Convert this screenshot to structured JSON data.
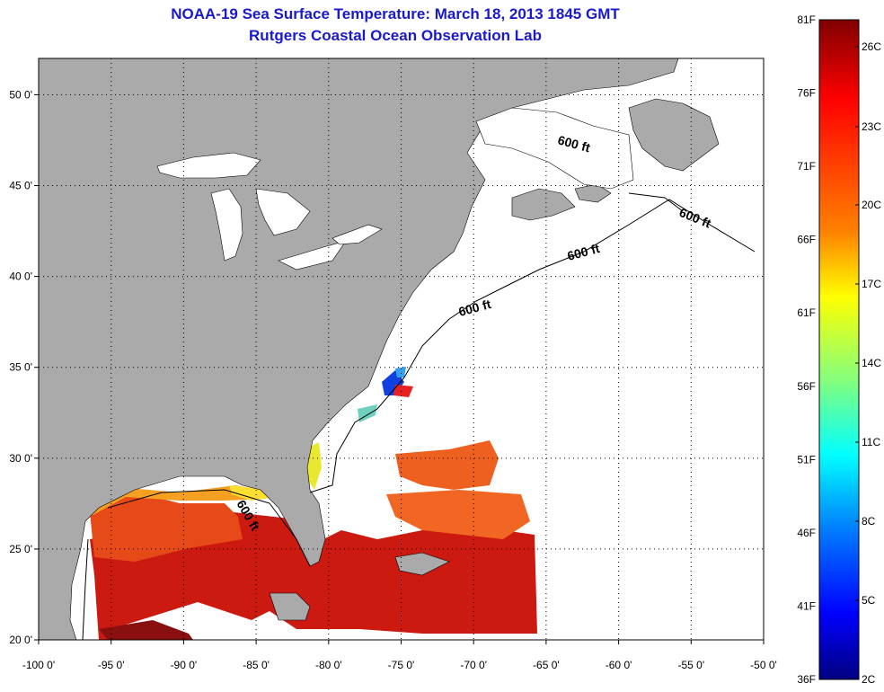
{
  "title": {
    "line1": "NOAA-19 Sea Surface Temperature:  March 18, 2013 1845 GMT",
    "line2": "Rutgers Coastal Ocean Observation Lab"
  },
  "map": {
    "lon_range": [
      -100,
      -50
    ],
    "lat_range": [
      20,
      52
    ],
    "lon_ticks": [
      {
        "value": -100,
        "label": "-100 0'"
      },
      {
        "value": -95,
        "label": "-95 0'"
      },
      {
        "value": -90,
        "label": "-90 0'"
      },
      {
        "value": -85,
        "label": "-85 0'"
      },
      {
        "value": -80,
        "label": "-80 0'"
      },
      {
        "value": -75,
        "label": "-75 0'"
      },
      {
        "value": -70,
        "label": "-70 0'"
      },
      {
        "value": -65,
        "label": "-65 0'"
      },
      {
        "value": -60,
        "label": "-60 0'"
      },
      {
        "value": -55,
        "label": "-55 0'"
      },
      {
        "value": -50,
        "label": "-50 0'"
      }
    ],
    "lat_ticks": [
      {
        "value": 20,
        "label": "20 0'"
      },
      {
        "value": 25,
        "label": "25 0'"
      },
      {
        "value": 30,
        "label": "30 0'"
      },
      {
        "value": 35,
        "label": "35 0'"
      },
      {
        "value": 40,
        "label": "40 0'"
      },
      {
        "value": 45,
        "label": "45 0'"
      },
      {
        "value": 50,
        "label": "50 0'"
      }
    ],
    "contour_label": "600 ft",
    "land_color": "#aaaaaa",
    "grid": "dotted"
  },
  "colorbar": {
    "fahrenheit": [
      "81F",
      "76F",
      "71F",
      "66F",
      "61F",
      "56F",
      "51F",
      "46F",
      "41F",
      "36F"
    ],
    "celsius": [
      "26C",
      "23C",
      "20C",
      "17C",
      "14C",
      "11C",
      "8C",
      "5C",
      "2C"
    ],
    "colors": [
      "#800000",
      "#ff0000",
      "#ff8000",
      "#ffff00",
      "#80ff80",
      "#00ffff",
      "#0080ff",
      "#0000ff",
      "#000080"
    ]
  }
}
